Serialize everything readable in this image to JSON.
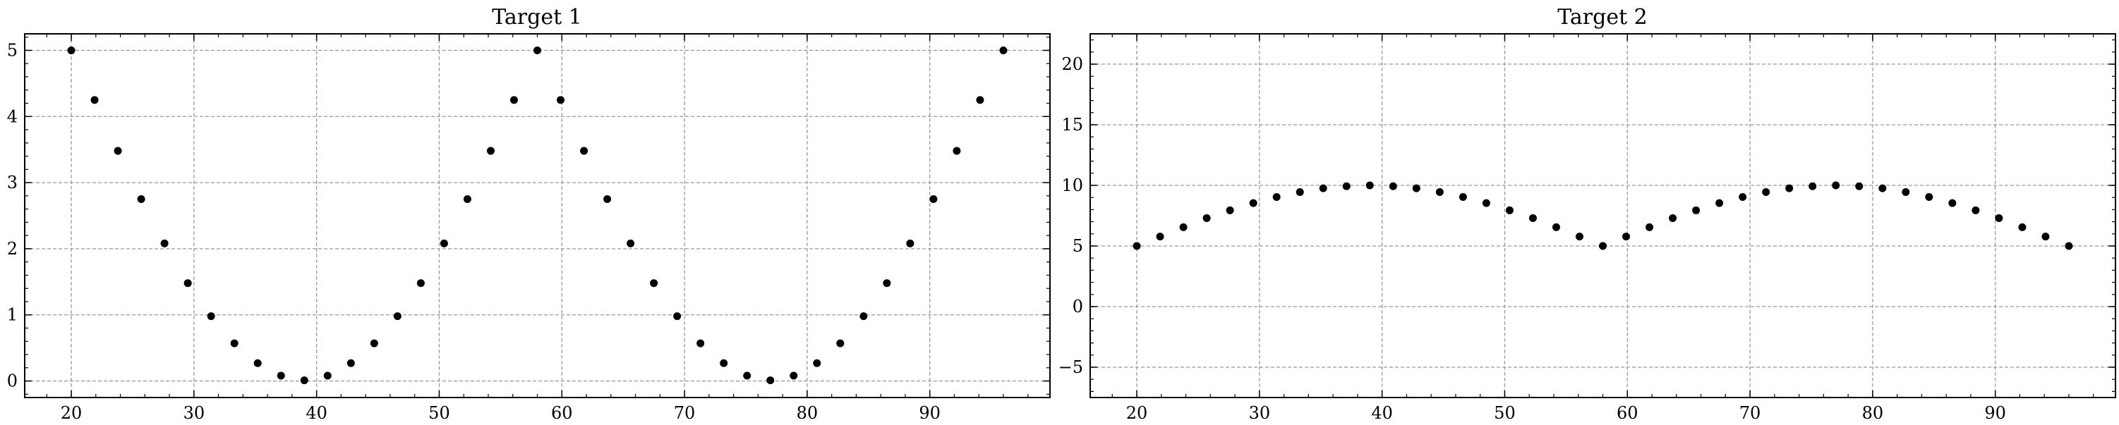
{
  "chart_data": [
    {
      "type": "scatter",
      "title": "Target 1",
      "xlabel": "",
      "ylabel": "",
      "xlim": [
        16.2,
        99.8
      ],
      "ylim": [
        -0.25,
        5.25
      ],
      "xticks": [
        20,
        30,
        40,
        50,
        60,
        70,
        80,
        90
      ],
      "yticks": [
        0,
        1,
        2,
        3,
        4,
        5
      ],
      "grid": true,
      "marker_color": "#000000",
      "x": [
        20,
        21.9,
        23.8,
        25.7,
        27.6,
        29.5,
        31.4,
        33.3,
        35.2,
        37.1,
        39,
        40.9,
        42.8,
        44.7,
        46.6,
        48.5,
        50.4,
        52.3,
        54.2,
        56.1,
        58,
        59.9,
        61.8,
        63.7,
        65.6,
        67.5,
        69.4,
        71.3,
        73.2,
        75.1,
        77,
        78.9,
        80.8,
        82.7,
        84.6,
        86.5,
        88.4,
        90.3,
        92.2,
        94.1,
        96
      ],
      "y": [
        5.0,
        4.25,
        3.48,
        2.75,
        2.08,
        1.48,
        0.98,
        0.57,
        0.27,
        0.08,
        0.01,
        0.08,
        0.27,
        0.57,
        0.98,
        1.48,
        2.08,
        2.75,
        3.48,
        4.25,
        5.0,
        4.25,
        3.48,
        2.75,
        2.08,
        1.48,
        0.98,
        0.57,
        0.27,
        0.08,
        0.01,
        0.08,
        0.27,
        0.57,
        0.98,
        1.48,
        2.08,
        2.75,
        3.48,
        4.25,
        5.0
      ]
    },
    {
      "type": "scatter",
      "title": "Target 2",
      "xlabel": "",
      "ylabel": "",
      "xlim": [
        16.2,
        99.8
      ],
      "ylim": [
        -7.5,
        22.5
      ],
      "xticks": [
        20,
        30,
        40,
        50,
        60,
        70,
        80,
        90
      ],
      "yticks": [
        -5,
        0,
        5,
        10,
        15,
        20
      ],
      "ytick_labels": [
        "−5",
        "0",
        "5",
        "10",
        "15",
        "20"
      ],
      "grid": true,
      "marker_color": "#000000",
      "x": [
        20,
        21.9,
        23.8,
        25.7,
        27.6,
        29.5,
        31.4,
        33.3,
        35.2,
        37.1,
        39,
        40.9,
        42.8,
        44.7,
        46.6,
        48.5,
        50.4,
        52.3,
        54.2,
        56.1,
        58,
        59.9,
        61.8,
        63.7,
        65.6,
        67.5,
        69.4,
        71.3,
        73.2,
        75.1,
        77,
        78.9,
        80.8,
        82.7,
        84.6,
        86.5,
        88.4,
        90.3,
        92.2,
        94.1,
        96
      ],
      "y": [
        5.0,
        5.78,
        6.55,
        7.3,
        7.94,
        8.54,
        9.04,
        9.45,
        9.76,
        9.93,
        10.0,
        9.93,
        9.76,
        9.45,
        9.04,
        8.54,
        7.94,
        7.3,
        6.55,
        5.78,
        5.0,
        5.78,
        6.55,
        7.3,
        7.94,
        8.54,
        9.04,
        9.45,
        9.76,
        9.93,
        10.0,
        9.93,
        9.76,
        9.45,
        9.04,
        8.54,
        7.94,
        7.3,
        6.55,
        5.78,
        5.0
      ]
    }
  ]
}
